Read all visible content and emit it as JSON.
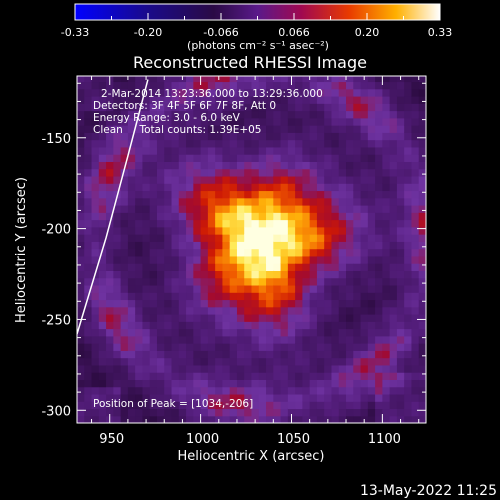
{
  "colorbar": {
    "ticks": [
      "-0.33",
      "-0.20",
      "-0.066",
      "0.066",
      "0.20",
      "0.33"
    ],
    "unit_label": "(photons cm⁻² s⁻¹ asec⁻²)",
    "range": [
      -0.33,
      0.33
    ],
    "colormap": "blue-black-purple-red-orange-yellow-white"
  },
  "chart_data": {
    "type": "heatmap",
    "title": "Reconstructed RHESSI Image",
    "xlabel": "Heliocentric X (arcsec)",
    "ylabel": "Heliocentric Y (arcsec)",
    "xlim": [
      932,
      1124
    ],
    "ylim": [
      -307,
      -116
    ],
    "x_ticks": [
      950,
      1000,
      1050,
      1100
    ],
    "y_ticks": [
      -150,
      -200,
      -250,
      -300
    ],
    "grid": false,
    "peak_position": [
      1034,
      -206
    ],
    "limb_curve_points": [
      [
        932,
        -258
      ],
      [
        948,
        -205
      ],
      [
        960,
        -160
      ],
      [
        971,
        -118
      ]
    ],
    "annotations": [
      "2-Mar-2014 13:23:36.000 to 13:29:36.000",
      "Detectors: 3F 4F 5F 6F 7F 8F, Att 0",
      "Energy Range: 3.0 - 6.0 keV",
      "Clean     Total counts: 1.39E+05",
      "Position of Peak = [1034,-206]"
    ]
  },
  "footer": {
    "date": "13-May-2022 11:25"
  },
  "colors": {
    "background": "#000000",
    "foreground": "#ffffff"
  }
}
